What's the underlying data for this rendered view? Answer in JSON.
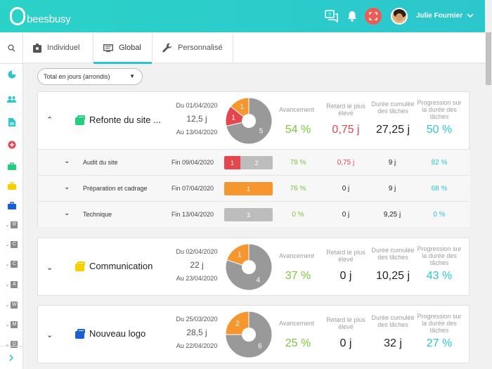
{
  "app": {
    "name": "beesbusy",
    "accent": "#2cc6cd"
  },
  "header": {
    "user_name": "Julie Fournier",
    "icons": [
      "chat-icon",
      "bell-icon",
      "fullscreen-icon"
    ]
  },
  "tabs": [
    {
      "label": "Individuel",
      "icon": "badge-icon"
    },
    {
      "label": "Global",
      "icon": "monitor-icon",
      "active": true
    },
    {
      "label": "Personnalisé",
      "icon": "wrench-icon"
    }
  ],
  "filter": {
    "selected": "Total en jours (arrondis)"
  },
  "metric_headers": {
    "progress": "Avancement",
    "delay": "Retard le plus élevé",
    "duration": "Durée cumulée des tâches",
    "rate": "Progression sur la durée des tâches"
  },
  "sidebar_letters": [
    "R",
    "C",
    "C",
    "A",
    "W",
    "M",
    "D"
  ],
  "colors": {
    "green": "#7dc641",
    "red": "#e5454d",
    "orange": "#f6962f",
    "gray": "#999999",
    "teal": "#2cc6cd"
  },
  "projects": [
    {
      "name": "Refonte du site ...",
      "icon_color": "#1ecf7e",
      "start": "Du 01/04/2020",
      "days": "12,5 j",
      "end": "Au 13/04/2020",
      "pie": [
        {
          "label": "5",
          "value": 5,
          "color": "#999999"
        },
        {
          "label": "1",
          "value": 1,
          "color": "#e5454d"
        },
        {
          "label": "1",
          "value": 1,
          "color": "#f6962f"
        }
      ],
      "progress": "54 %",
      "delay": "0,75 j",
      "duration": "27,25 j",
      "rate": "50 %",
      "subtasks": [
        {
          "name": "Audit du site",
          "end": "Fin 09/04/2020",
          "bar": [
            {
              "label": "1",
              "value": 1,
              "color": "#e5454d"
            },
            {
              "label": "2",
              "value": 2,
              "color": "#bdbdbd"
            }
          ],
          "progress": "78 %",
          "delay": "0,75 j",
          "duration": "9 j",
          "rate": "82 %"
        },
        {
          "name": "Préparation et cadrage",
          "end": "Fin 07/04/2020",
          "bar": [
            {
              "label": "1",
              "value": 1,
              "color": "#f6962f"
            }
          ],
          "progress": "76 %",
          "delay": "0 j",
          "duration": "9 j",
          "rate": "68 %"
        },
        {
          "name": "Technique",
          "end": "Fin 13/04/2020",
          "bar": [
            {
              "label": "3",
              "value": 3,
              "color": "#bdbdbd"
            }
          ],
          "progress": "0 %",
          "delay": "0 j",
          "duration": "9,25 j",
          "rate": "0 %"
        }
      ]
    },
    {
      "name": "Communication",
      "icon_color": "#f7cf00",
      "start": "Du 02/04/2020",
      "days": "22 j",
      "end": "Au 23/04/2020",
      "pie": [
        {
          "label": "4",
          "value": 4,
          "color": "#999999"
        },
        {
          "label": "1",
          "value": 1,
          "color": "#f6962f"
        }
      ],
      "progress": "37 %",
      "delay": "0 j",
      "duration": "10,25 j",
      "rate": "43 %"
    },
    {
      "name": "Nouveau logo",
      "icon_color": "#1a5fd8",
      "start": "Du 25/03/2020",
      "days": "28,5 j",
      "end": "Au 22/04/2020",
      "pie": [
        {
          "label": "6",
          "value": 6,
          "color": "#999999"
        },
        {
          "label": "2",
          "value": 2,
          "color": "#f6962f"
        }
      ],
      "progress": "25 %",
      "delay": "0 j",
      "duration": "32 j",
      "rate": "27 %"
    }
  ]
}
